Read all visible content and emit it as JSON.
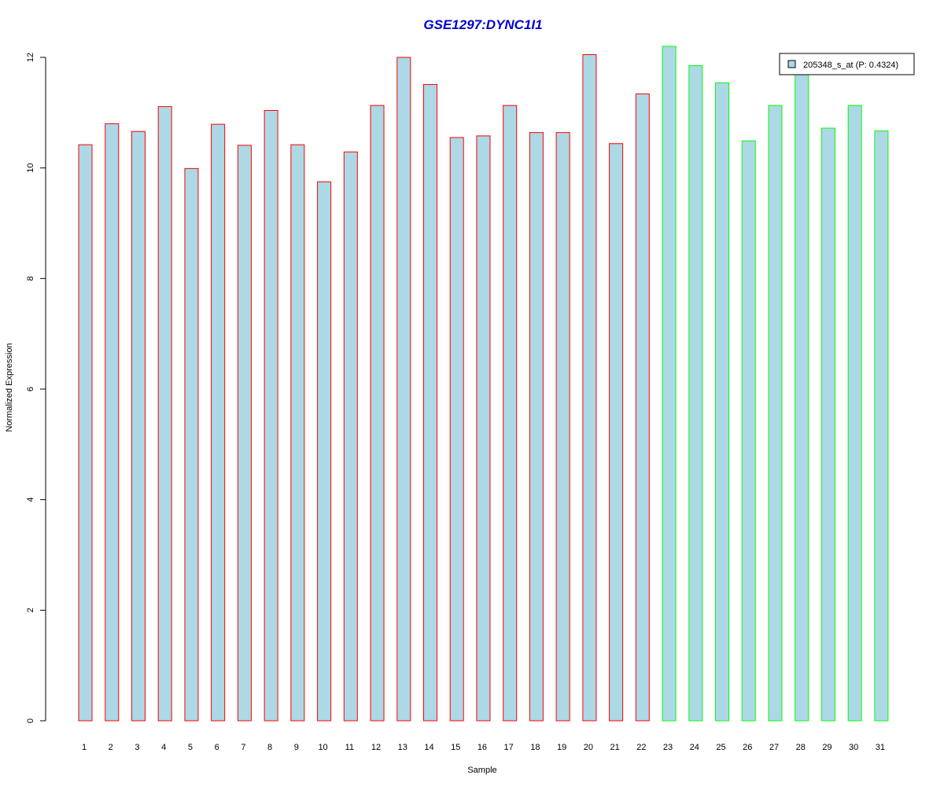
{
  "chart_data": {
    "type": "bar",
    "title": "GSE1297:DYNC1I1",
    "xlabel": "Sample",
    "ylabel": "Normalized Expression",
    "ylim": [
      0,
      12
    ],
    "yticks": [
      0,
      2,
      4,
      6,
      8,
      10,
      12
    ],
    "grid": false,
    "legend_position": "top-right",
    "categories": [
      "1",
      "2",
      "3",
      "4",
      "5",
      "6",
      "7",
      "8",
      "9",
      "10",
      "11",
      "12",
      "13",
      "14",
      "15",
      "16",
      "17",
      "18",
      "19",
      "20",
      "21",
      "22",
      "23",
      "24",
      "25",
      "26",
      "27",
      "28",
      "29",
      "30",
      "31"
    ],
    "series": [
      {
        "name": "205348_s_at (P: 0.4324)",
        "values": [
          10.42,
          10.8,
          10.66,
          11.11,
          9.99,
          10.79,
          10.41,
          11.04,
          10.42,
          9.75,
          10.29,
          11.13,
          12.0,
          11.51,
          10.55,
          10.58,
          11.13,
          10.64,
          10.64,
          12.05,
          10.44,
          11.34,
          12.2,
          11.85,
          11.54,
          10.49,
          11.13,
          11.8,
          10.72,
          11.13,
          10.67
        ]
      }
    ],
    "groups": [
      "red",
      "red",
      "red",
      "red",
      "red",
      "red",
      "red",
      "red",
      "red",
      "red",
      "red",
      "red",
      "red",
      "red",
      "red",
      "red",
      "red",
      "red",
      "red",
      "red",
      "red",
      "red",
      "green",
      "green",
      "green",
      "green",
      "green",
      "green",
      "green",
      "green",
      "green"
    ],
    "colors": {
      "bar_fill": "#ADD8E6",
      "group_red": "#FF0000",
      "group_green": "#00FF00",
      "title": "#0000CD"
    }
  }
}
